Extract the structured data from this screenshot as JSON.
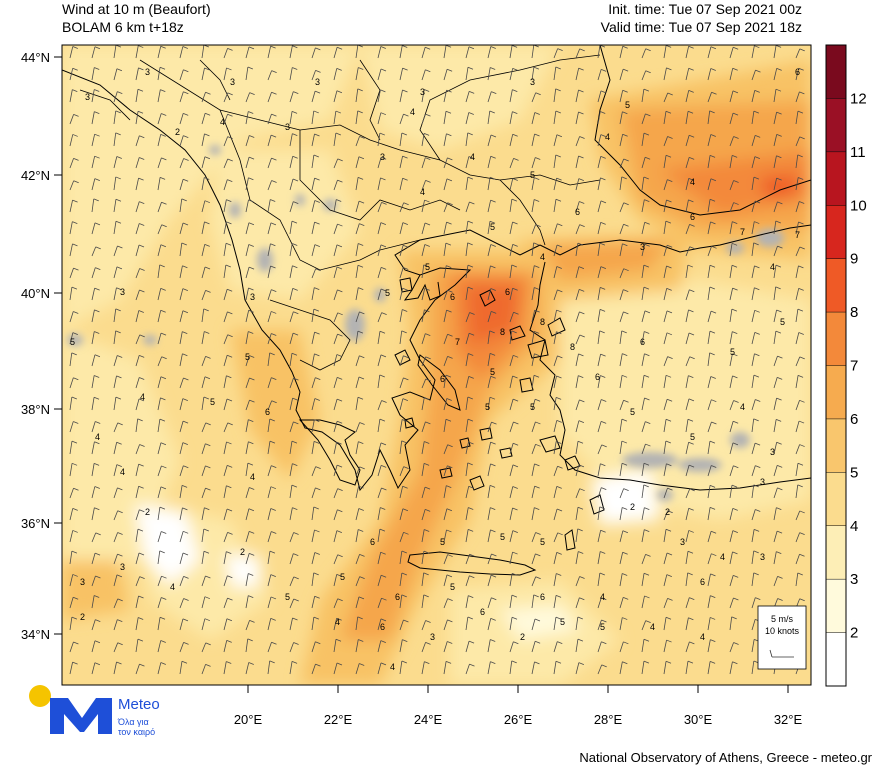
{
  "header": {
    "title_line1": "Wind at 10 m (Beaufort)",
    "title_line2": "BOLAM 6 km t+18z",
    "init_time": "Init. time: Tue 07 Sep 2021 00z",
    "valid_time": "Valid time: Tue 07 Sep 2021 18z"
  },
  "axes": {
    "lat_labels": [
      "44°N",
      "42°N",
      "40°N",
      "38°N",
      "36°N",
      "34°N"
    ],
    "lon_labels": [
      "20°E",
      "22°E",
      "24°E",
      "26°E",
      "28°E",
      "30°E",
      "32°E"
    ]
  },
  "colorbar": {
    "labels": [
      "12",
      "11",
      "10",
      "9",
      "8",
      "7",
      "6",
      "5",
      "4",
      "3",
      "2"
    ],
    "colors": [
      "#7a0a1e",
      "#9a1025",
      "#b8151f",
      "#d7261e",
      "#ef5a26",
      "#f3893a",
      "#f6ab4f",
      "#f9c66d",
      "#fbdc8e",
      "#fdeeb6",
      "#fffadc",
      "#ffffff"
    ]
  },
  "wind_legend": {
    "line1": "5 m/s",
    "line2": "10 knots"
  },
  "logo": {
    "name": "Meteo",
    "sub_line1": "Όλα για",
    "sub_line2": "τον καιρό"
  },
  "footer": "National Observatory of Athens, Greece - meteo.gr",
  "contour_labels": [
    "3",
    "3",
    "3",
    "3",
    "3",
    "4",
    "5",
    "6",
    "2",
    "3",
    "4",
    "3",
    "3",
    "4",
    "4",
    "5",
    "4",
    "4",
    "6",
    "7",
    "7",
    "6",
    "3",
    "4",
    "5",
    "5",
    "5",
    "6",
    "6",
    "8",
    "8",
    "8",
    "7",
    "6",
    "5",
    "5",
    "5",
    "6",
    "6",
    "5",
    "4",
    "5",
    "5",
    "5",
    "4",
    "3",
    "3",
    "2",
    "2",
    "3",
    "4",
    "3",
    "5",
    "5",
    "6",
    "5",
    "4",
    "2",
    "2",
    "6",
    "5",
    "5",
    "4",
    "3",
    "3",
    "6",
    "5",
    "4",
    "6",
    "6",
    "6",
    "4",
    "5",
    "5",
    "5",
    "6",
    "5",
    "2",
    "4",
    "4",
    "4",
    "3",
    "3",
    "4",
    "2",
    "5",
    "5",
    "4",
    "4",
    "3"
  ]
}
